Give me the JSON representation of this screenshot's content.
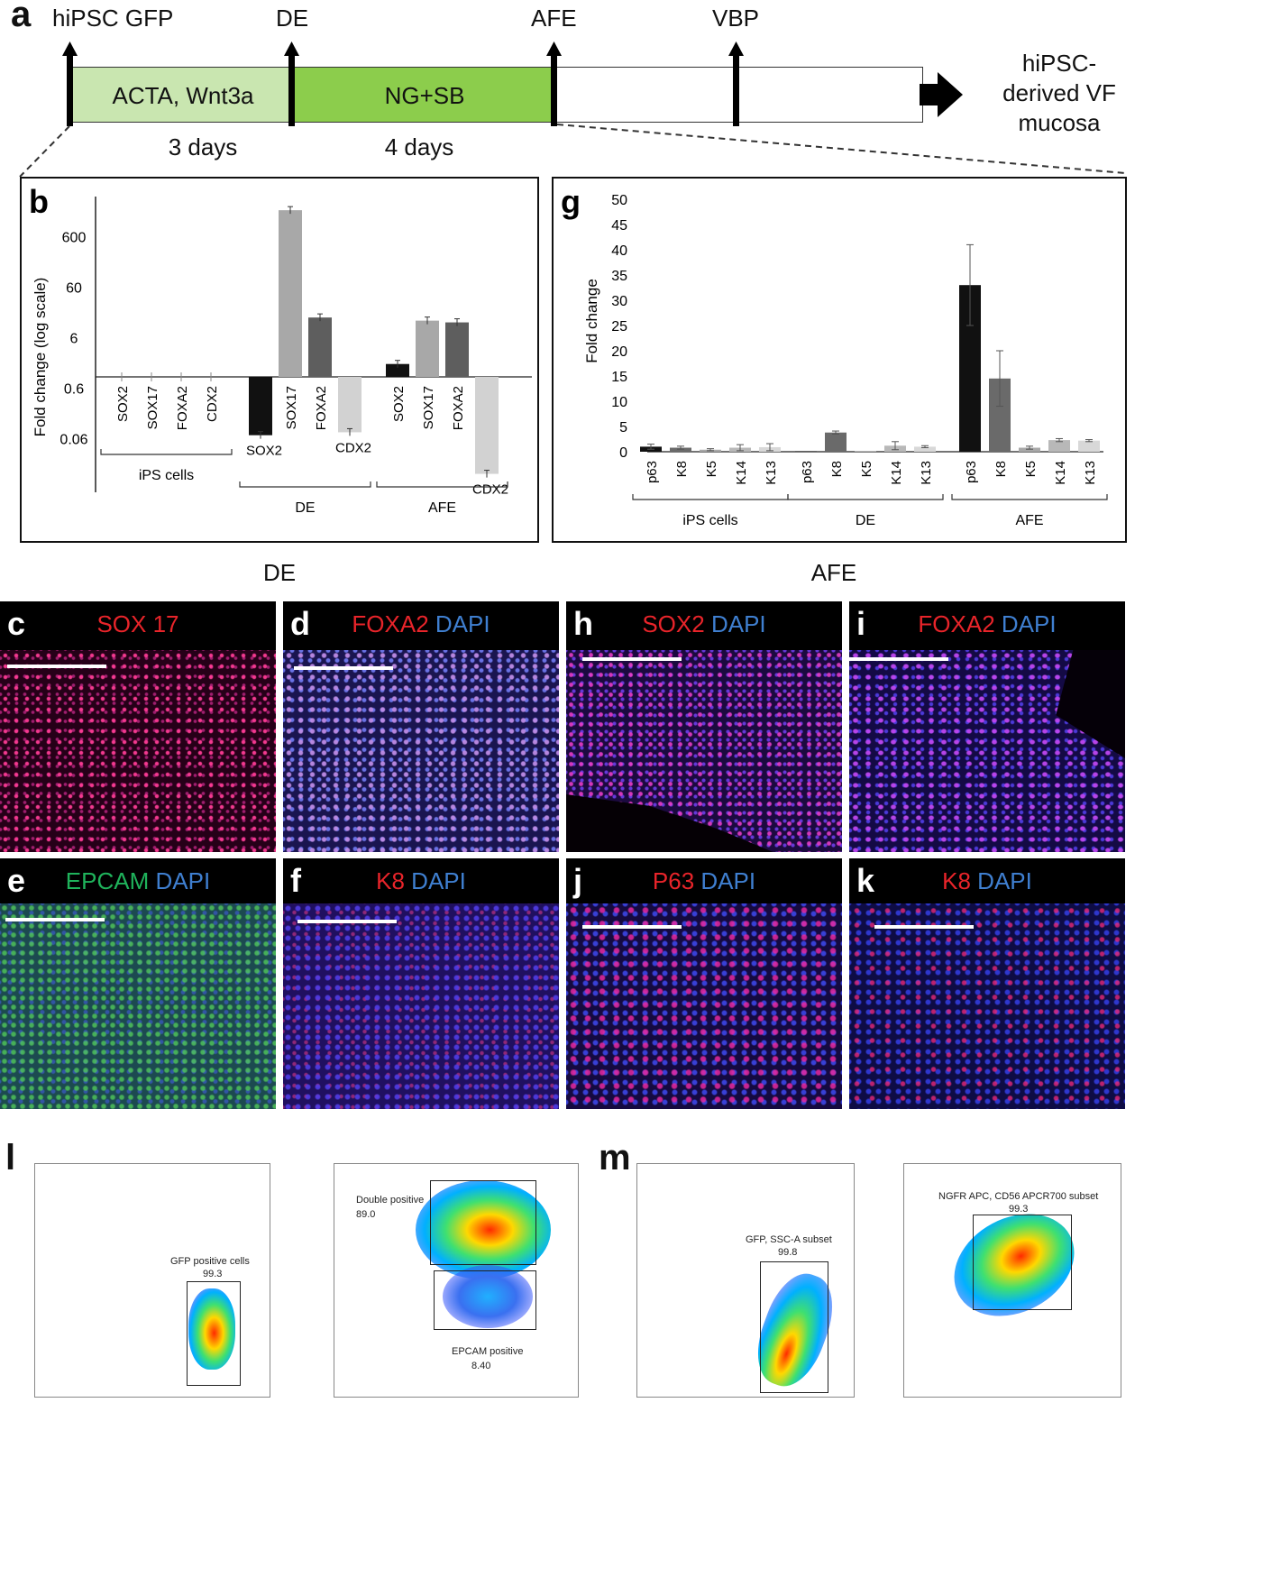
{
  "panel_a": {
    "letter": "a",
    "milestones": [
      "hiPSC GFP",
      "DE",
      "AFE",
      "VBP"
    ],
    "stage1_label": "ACTA, Wnt3a",
    "stage2_label": "NG+SB",
    "duration1": "3 days",
    "duration2": "4 days",
    "outcome": [
      "hiPSC-",
      "derived VF",
      "mucosa"
    ],
    "colors": {
      "stage1": "#c9e6b0",
      "stage2": "#8ccd4c",
      "stage3": "#ffffff"
    }
  },
  "chart_data": [
    {
      "panel": "b",
      "type": "bar",
      "ylabel": "Fold change (log scale)",
      "yscale": "log",
      "yticks": [
        "600",
        "60",
        "6",
        "0.6",
        "0.06"
      ],
      "groups": [
        {
          "name": "iPS cells",
          "bars": [
            {
              "label": "SOX2",
              "value": 1,
              "color": "#888888"
            },
            {
              "label": "SOX17",
              "value": 1,
              "color": "#888888"
            },
            {
              "label": "FOXA2",
              "value": 1,
              "color": "#888888"
            },
            {
              "label": "CDX2",
              "value": 1,
              "color": "#888888"
            }
          ]
        },
        {
          "name": "DE",
          "bars": [
            {
              "label": "SOX2",
              "value": 0.07,
              "color": "#111111"
            },
            {
              "label": "SOX17",
              "value": 2000,
              "color": "#a8a8a8"
            },
            {
              "label": "FOXA2",
              "value": 15,
              "color": "#5e5e5e"
            },
            {
              "label": "CDX2",
              "value": 0.08,
              "color": "#d2d2d2"
            }
          ]
        },
        {
          "name": "AFE",
          "bars": [
            {
              "label": "SOX2",
              "value": 1.8,
              "color": "#111111"
            },
            {
              "label": "SOX17",
              "value": 13,
              "color": "#a8a8a8"
            },
            {
              "label": "FOXA2",
              "value": 12,
              "color": "#5e5e5e"
            },
            {
              "label": "CDX2",
              "value": 0.012,
              "color": "#d2d2d2"
            }
          ]
        }
      ]
    },
    {
      "panel": "g",
      "type": "bar",
      "ylabel": "Fold change",
      "ylim": [
        0,
        50
      ],
      "yticks": [
        "0",
        "5",
        "10",
        "15",
        "20",
        "25",
        "30",
        "35",
        "40",
        "45",
        "50"
      ],
      "groups": [
        {
          "name": "iPS cells",
          "bars": [
            {
              "label": "p63",
              "value": 1,
              "err": 0.5,
              "color": "#111111"
            },
            {
              "label": "K8",
              "value": 0.8,
              "err": 0.3,
              "color": "#6a6a6a"
            },
            {
              "label": "K5",
              "value": 0.4,
              "err": 0.2,
              "color": "#a8a8a8"
            },
            {
              "label": "K14",
              "value": 0.8,
              "err": 0.6,
              "color": "#b8b8b8"
            },
            {
              "label": "K13",
              "value": 0.9,
              "err": 0.7,
              "color": "#d8d8d8"
            }
          ]
        },
        {
          "name": "DE",
          "bars": [
            {
              "label": "p63",
              "value": 0.1,
              "err": 0,
              "color": "#111111"
            },
            {
              "label": "K8",
              "value": 3.8,
              "err": 0.3,
              "color": "#6a6a6a"
            },
            {
              "label": "K5",
              "value": 0.1,
              "err": 0,
              "color": "#a8a8a8"
            },
            {
              "label": "K14",
              "value": 1.2,
              "err": 0.8,
              "color": "#b8b8b8"
            },
            {
              "label": "K13",
              "value": 1,
              "err": 0.2,
              "color": "#d8d8d8"
            }
          ]
        },
        {
          "name": "AFE",
          "bars": [
            {
              "label": "p63",
              "value": 33,
              "err": 8,
              "color": "#111111"
            },
            {
              "label": "K8",
              "value": 14.5,
              "err": 5.5,
              "color": "#6a6a6a"
            },
            {
              "label": "K5",
              "value": 0.8,
              "err": 0.3,
              "color": "#a8a8a8"
            },
            {
              "label": "K14",
              "value": 2.3,
              "err": 0.3,
              "color": "#b8b8b8"
            },
            {
              "label": "K13",
              "value": 2.2,
              "err": 0.2,
              "color": "#d8d8d8"
            }
          ]
        }
      ]
    }
  ],
  "section_titles": {
    "left": "DE",
    "right": "AFE"
  },
  "micrographs": {
    "c": {
      "letter": "c",
      "marker": "SOX 17",
      "stain": ""
    },
    "d": {
      "letter": "d",
      "marker": "FOXA2",
      "stain": "DAPI"
    },
    "h": {
      "letter": "h",
      "marker": "SOX2",
      "stain": "DAPI"
    },
    "i": {
      "letter": "i",
      "marker": "FOXA2",
      "stain": "DAPI"
    },
    "e": {
      "letter": "e",
      "marker": "EPCAM",
      "stain": "DAPI"
    },
    "f": {
      "letter": "f",
      "marker": "K8",
      "stain": "DAPI"
    },
    "j": {
      "letter": "j",
      "marker": "P63",
      "stain": "DAPI"
    },
    "k": {
      "letter": "k",
      "marker": "K8",
      "stain": "DAPI"
    }
  },
  "flow": {
    "l_letter": "l",
    "m_letter": "m",
    "l1_gate": "GFP positive cells",
    "l1_value": "99.3",
    "l2_gate1": "Double positive",
    "l2_value1": "89.0",
    "l2_gate2": "EPCAM positive",
    "l2_value2": "8.40",
    "m1_gate": "GFP, SSC-A subset",
    "m1_value": "99.8",
    "m2_gate": "NGFR APC, CD56 APCR700 subset",
    "m2_value": "99.3"
  }
}
